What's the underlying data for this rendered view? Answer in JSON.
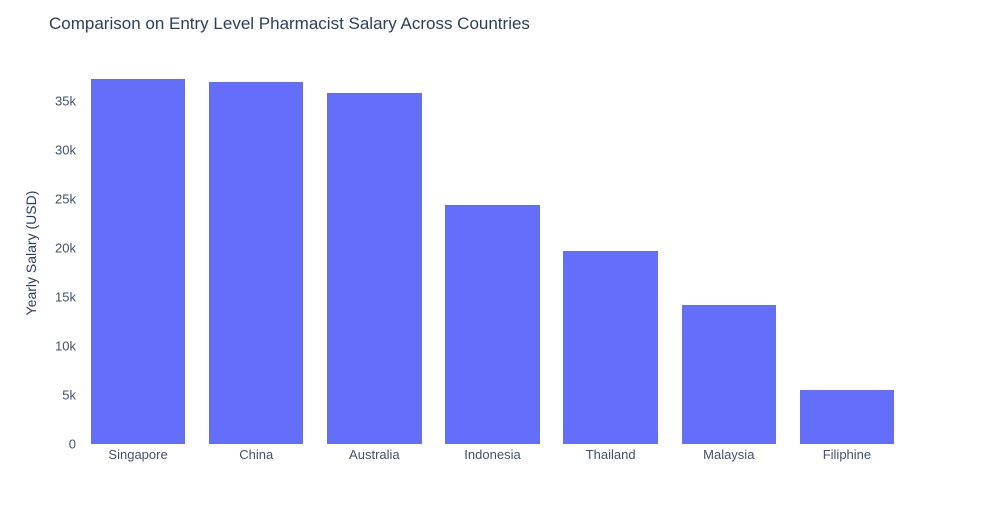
{
  "title": "Comparison on Entry Level Pharmacist Salary Across Countries",
  "colors": {
    "bar": "#636EFA",
    "title_text": "#2a3f5f",
    "axis_text": "#42516d",
    "background": "#ffffff"
  },
  "chart_data": {
    "type": "bar",
    "title": "Comparison on Entry Level Pharmacist Salary Across Countries",
    "categories": [
      "Singapore",
      "China",
      "Australia",
      "Indonesia",
      "Thailand",
      "Malaysia",
      "Filiphine"
    ],
    "values": [
      37200,
      36900,
      35800,
      24400,
      19700,
      14200,
      5500
    ],
    "xlabel": "",
    "ylabel": "Yearly Salary (USD)",
    "ylim": [
      0,
      35000
    ],
    "yticks": {
      "values": [
        0,
        5000,
        10000,
        15000,
        20000,
        25000,
        30000,
        35000
      ],
      "labels": [
        "0",
        "5k",
        "10k",
        "15k",
        "20k",
        "25k",
        "30k",
        "35k"
      ]
    },
    "grid": false,
    "legend": "none",
    "bar_color": "#636EFA"
  }
}
